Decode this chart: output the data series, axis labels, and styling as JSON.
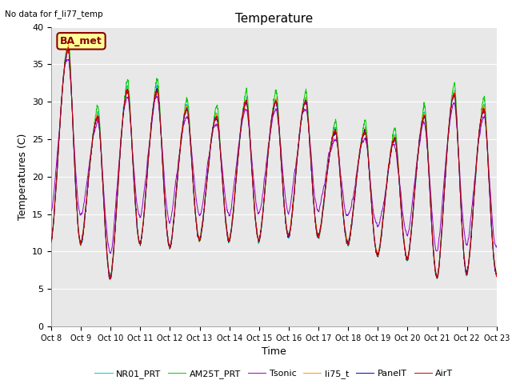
{
  "title": "Temperature",
  "xlabel": "Time",
  "ylabel": "Temperatures (C)",
  "ylim": [
    0,
    40
  ],
  "background_color": "#e8e8e8",
  "annotation": "No data for f_li77_temp",
  "legend_label": "BA_met",
  "series_colors": {
    "AirT": "#cc0000",
    "PanelT": "#0000cc",
    "AM25T_PRT": "#00cc00",
    "li75_t": "#ff9900",
    "Tsonic": "#9900cc",
    "NR01_PRT": "#00cccc"
  },
  "x_tick_labels": [
    "Oct 8",
    "Oct 9",
    "Oct 10",
    "Oct 11",
    "Oct 12",
    "Oct 13",
    "Oct 14",
    "Oct 15",
    "Oct 16",
    "Oct 17",
    "Oct 18",
    "Oct 19",
    "Oct 20",
    "Oct 21",
    "Oct 22",
    "Oct 23"
  ],
  "n_days": 15,
  "points_per_day": 144,
  "figsize": [
    6.4,
    4.8
  ],
  "dpi": 100
}
